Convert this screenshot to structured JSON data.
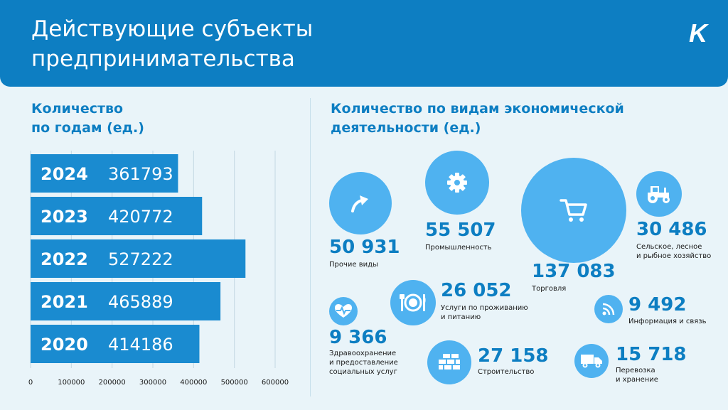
{
  "header": {
    "title": "Действующие субъекты\nпредпринимательства",
    "logo_text": "K",
    "logo_icon": "k-logo-icon"
  },
  "colors": {
    "brand_blue": "#0d7ec2",
    "bar_blue": "#1a8bd0",
    "bubble_blue": "#4fb2f0",
    "background": "#e9f4f9"
  },
  "left_section": {
    "title": "Количество\nпо годам (ед.)"
  },
  "right_section": {
    "title": "Количество по видам экономической\nдеятельности (ед.)"
  },
  "chart_data": {
    "type": "bar",
    "orientation": "horizontal",
    "categories": [
      "2024",
      "2023",
      "2022",
      "2021",
      "2020"
    ],
    "values": [
      361793,
      420772,
      527222,
      465889,
      414186
    ],
    "value_labels": [
      "361793",
      "420772",
      "527222",
      "465889",
      "414186"
    ],
    "xlim": [
      0,
      600000
    ],
    "xticks": [
      0,
      100000,
      200000,
      300000,
      400000,
      500000,
      600000
    ],
    "xtick_labels": [
      "0",
      "100000",
      "200000",
      "300000",
      "400000",
      "500000",
      "600000"
    ],
    "grid": true
  },
  "activities": [
    {
      "key": "other",
      "value": "50 931",
      "label": "Прочие виды",
      "icon": "arrow-up-icon"
    },
    {
      "key": "industry",
      "value": "55 507",
      "label": "Промышленность",
      "icon": "gear-icon"
    },
    {
      "key": "trade",
      "value": "137 083",
      "label": "Торговля",
      "icon": "shopping-cart-icon"
    },
    {
      "key": "agriculture",
      "value": "30 486",
      "label": "Сельское, лесное\nи рыбное хозяйство",
      "icon": "tractor-icon"
    },
    {
      "key": "hospitality",
      "value": "26 052",
      "label": "Услуги по проживанию\nи питанию",
      "icon": "plate-fork-knife-icon"
    },
    {
      "key": "it",
      "value": "9 492",
      "label": "Информация и связь",
      "icon": "wifi-signal-icon"
    },
    {
      "key": "health",
      "value": "9 366",
      "label": "Здравоохранение\nи предоставление\nсоциальных услуг",
      "icon": "heart-pulse-icon"
    },
    {
      "key": "construction",
      "value": "27 158",
      "label": "Строительство",
      "icon": "bricks-icon"
    },
    {
      "key": "transport",
      "value": "15 718",
      "label": "Перевозка\nи хранение",
      "icon": "truck-icon"
    }
  ]
}
